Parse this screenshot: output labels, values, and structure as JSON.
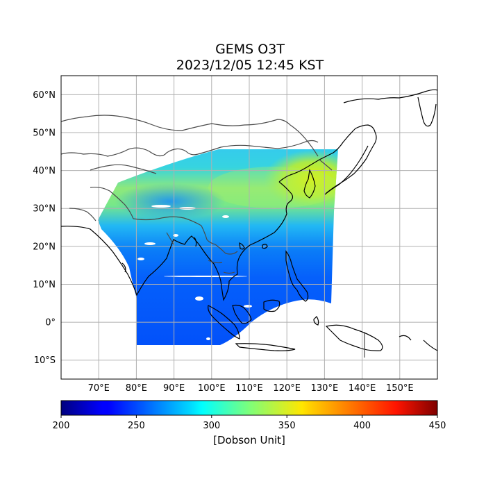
{
  "title": {
    "line1": "GEMS O3T",
    "line2": "2023/12/05 12:45 KST"
  },
  "map": {
    "projection": "PlateCarree",
    "lon_range": [
      60,
      160
    ],
    "lat_range": [
      -15,
      65
    ],
    "lat_ticks": [
      {
        "value": 60,
        "label": "60°N"
      },
      {
        "value": 50,
        "label": "50°N"
      },
      {
        "value": 40,
        "label": "40°N"
      },
      {
        "value": 30,
        "label": "30°N"
      },
      {
        "value": 20,
        "label": "20°N"
      },
      {
        "value": 10,
        "label": "10°N"
      },
      {
        "value": 0,
        "label": "0°"
      },
      {
        "value": -10,
        "label": "10°S"
      }
    ],
    "lon_ticks": [
      {
        "value": 70,
        "label": "70°E"
      },
      {
        "value": 80,
        "label": "80°E"
      },
      {
        "value": 90,
        "label": "90°E"
      },
      {
        "value": 100,
        "label": "100°E"
      },
      {
        "value": 110,
        "label": "110°E"
      },
      {
        "value": 120,
        "label": "120°E"
      },
      {
        "value": 130,
        "label": "130°E"
      },
      {
        "value": 140,
        "label": "140°E"
      },
      {
        "value": 150,
        "label": "150°E"
      }
    ],
    "gridlines": true,
    "grid_color": "#b0b0b0"
  },
  "colorbar": {
    "colormap": "jet",
    "min": 200,
    "max": 450,
    "ticks": [
      200,
      250,
      300,
      350,
      400,
      450
    ],
    "label": "[Dobson Unit]"
  },
  "field": {
    "variable": "total column ozone",
    "approx_values_DU": {
      "tropics_south_asia": 250,
      "china_mid_lat": 300,
      "korea_northeast_china": 345,
      "tibet": 265
    }
  }
}
